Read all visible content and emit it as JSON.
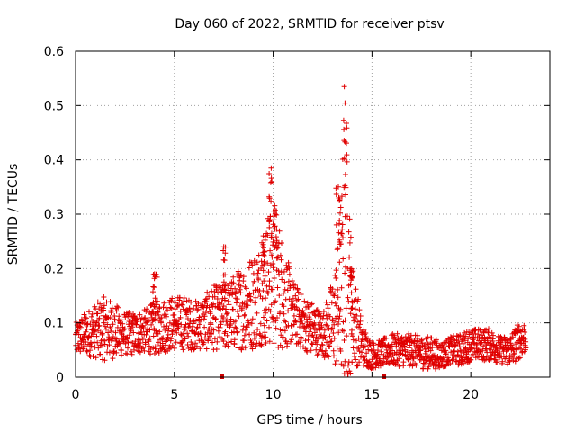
{
  "chart_data": {
    "type": "scatter",
    "title": "Day 060 of 2022, SRMTID for receiver ptsv",
    "xlabel": "GPS time / hours",
    "ylabel": "SRMTID / TECUs",
    "xlim": [
      0,
      24
    ],
    "ylim": [
      0,
      0.6
    ],
    "xticks": [
      0,
      5,
      10,
      15,
      20
    ],
    "yticks": [
      0,
      0.1,
      0.2,
      0.3,
      0.4,
      0.5,
      0.6
    ],
    "xtick_labels": [
      "0",
      "5",
      "10",
      "15",
      "20"
    ],
    "ytick_labels": [
      "0",
      "0.1",
      "0.2",
      "0.3",
      "0.4",
      "0.5",
      "0.6"
    ],
    "grid": true,
    "marker": "plus",
    "marker_color": "#e00000",
    "data_gaps_hours": [
      7.4,
      15.6
    ],
    "envelope": {
      "hours": [
        0.0,
        0.5,
        1.0,
        1.5,
        2.0,
        2.5,
        3.0,
        3.5,
        4.0,
        4.5,
        5.0,
        5.5,
        6.0,
        6.5,
        7.0,
        7.5,
        8.0,
        8.5,
        9.0,
        9.5,
        10.0,
        10.5,
        11.0,
        11.5,
        12.0,
        12.5,
        13.0,
        13.5,
        13.7,
        14.0,
        14.5,
        15.0,
        15.5,
        16.0,
        16.5,
        17.0,
        17.5,
        18.0,
        18.5,
        19.0,
        19.5,
        20.0,
        20.5,
        21.0,
        21.5,
        22.0,
        22.5,
        22.8
      ],
      "center": [
        0.07,
        0.08,
        0.085,
        0.09,
        0.085,
        0.08,
        0.08,
        0.085,
        0.09,
        0.095,
        0.1,
        0.1,
        0.095,
        0.1,
        0.11,
        0.11,
        0.12,
        0.13,
        0.14,
        0.16,
        0.2,
        0.15,
        0.12,
        0.1,
        0.09,
        0.08,
        0.1,
        0.15,
        0.2,
        0.12,
        0.06,
        0.04,
        0.045,
        0.05,
        0.05,
        0.05,
        0.045,
        0.045,
        0.04,
        0.05,
        0.05,
        0.06,
        0.06,
        0.06,
        0.05,
        0.05,
        0.07,
        0.075
      ],
      "spread": [
        0.03,
        0.04,
        0.05,
        0.06,
        0.05,
        0.04,
        0.04,
        0.04,
        0.05,
        0.05,
        0.05,
        0.05,
        0.045,
        0.05,
        0.06,
        0.06,
        0.07,
        0.08,
        0.09,
        0.1,
        0.15,
        0.1,
        0.06,
        0.05,
        0.05,
        0.04,
        0.08,
        0.15,
        0.25,
        0.1,
        0.04,
        0.025,
        0.025,
        0.03,
        0.03,
        0.03,
        0.03,
        0.03,
        0.025,
        0.025,
        0.03,
        0.03,
        0.03,
        0.03,
        0.025,
        0.03,
        0.035,
        0.03
      ]
    },
    "peaks": [
      {
        "hours": 4.0,
        "value": 0.19
      },
      {
        "hours": 7.5,
        "value": 0.24
      },
      {
        "hours": 9.5,
        "value": 0.26
      },
      {
        "hours": 9.9,
        "value": 0.385
      },
      {
        "hours": 10.1,
        "value": 0.3
      },
      {
        "hours": 13.3,
        "value": 0.35
      },
      {
        "hours": 13.6,
        "value": 0.535
      },
      {
        "hours": 13.9,
        "value": 0.2
      }
    ]
  }
}
